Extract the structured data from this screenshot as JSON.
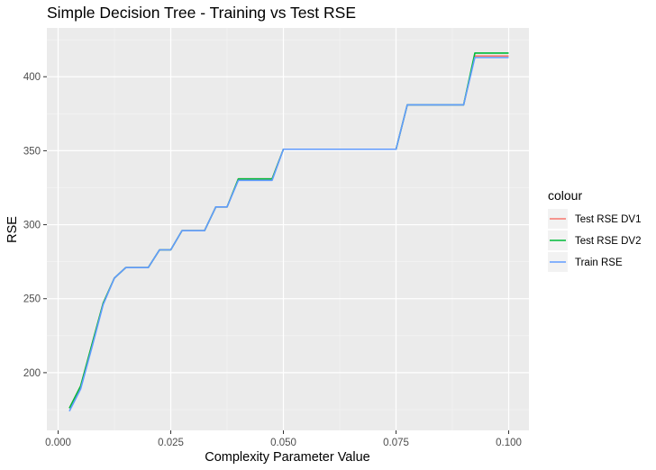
{
  "chart_data": {
    "type": "line",
    "title": "Simple Decision Tree - Training vs Test RSE",
    "xlabel": "Complexity Parameter Value",
    "ylabel": "RSE",
    "xlim": [
      -0.0025,
      0.1045
    ],
    "ylim": [
      161,
      433
    ],
    "x_ticks": [
      0.0,
      0.025,
      0.05,
      0.075,
      0.1
    ],
    "x_tick_labels": [
      "0.000",
      "0.025",
      "0.050",
      "0.075",
      "0.100"
    ],
    "y_ticks": [
      200,
      250,
      300,
      350,
      400
    ],
    "y_tick_labels": [
      "200",
      "250",
      "300",
      "350",
      "400"
    ],
    "grid": true,
    "legend": {
      "title": "colour",
      "position": "right",
      "items": [
        {
          "label": "Test RSE DV1",
          "color": "#F8766D"
        },
        {
          "label": "Test RSE DV2",
          "color": "#00BA38"
        },
        {
          "label": "Train RSE",
          "color": "#619CFF"
        }
      ]
    },
    "x": [
      0.0025,
      0.005,
      0.0075,
      0.01,
      0.0125,
      0.015,
      0.0175,
      0.02,
      0.0225,
      0.025,
      0.0275,
      0.03,
      0.0325,
      0.035,
      0.0375,
      0.04,
      0.0425,
      0.045,
      0.0475,
      0.05,
      0.0525,
      0.055,
      0.0575,
      0.06,
      0.0625,
      0.065,
      0.0675,
      0.07,
      0.0725,
      0.075,
      0.0775,
      0.08,
      0.0825,
      0.085,
      0.0875,
      0.09,
      0.0925,
      0.095,
      0.0975,
      0.1
    ],
    "series": [
      {
        "name": "Train RSE",
        "color": "#619CFF",
        "values": [
          174,
          189,
          217,
          246,
          264,
          271,
          271,
          271,
          283,
          283,
          296,
          296,
          296,
          312,
          312,
          330,
          330,
          330,
          330,
          351,
          351,
          351,
          351,
          351,
          351,
          351,
          351,
          351,
          351,
          351,
          381,
          381,
          381,
          381,
          381,
          381,
          413,
          413,
          413,
          413
        ]
      },
      {
        "name": "Test RSE DV1",
        "color": "#F8766D",
        "values": [
          176,
          191,
          219,
          247,
          264,
          271,
          271,
          271,
          283,
          283,
          296,
          296,
          296,
          312,
          312,
          331,
          331,
          331,
          331,
          351,
          351,
          351,
          351,
          351,
          351,
          351,
          351,
          351,
          351,
          351,
          381,
          381,
          381,
          381,
          381,
          381,
          414,
          414,
          414,
          414
        ]
      },
      {
        "name": "Test RSE DV2",
        "color": "#00BA38",
        "values": [
          176,
          191,
          219,
          247,
          264,
          271,
          271,
          271,
          283,
          283,
          296,
          296,
          296,
          312,
          312,
          331,
          331,
          331,
          331,
          351,
          351,
          351,
          351,
          351,
          351,
          351,
          351,
          351,
          351,
          351,
          381,
          381,
          381,
          381,
          381,
          381,
          416,
          416,
          416,
          416
        ]
      }
    ]
  }
}
